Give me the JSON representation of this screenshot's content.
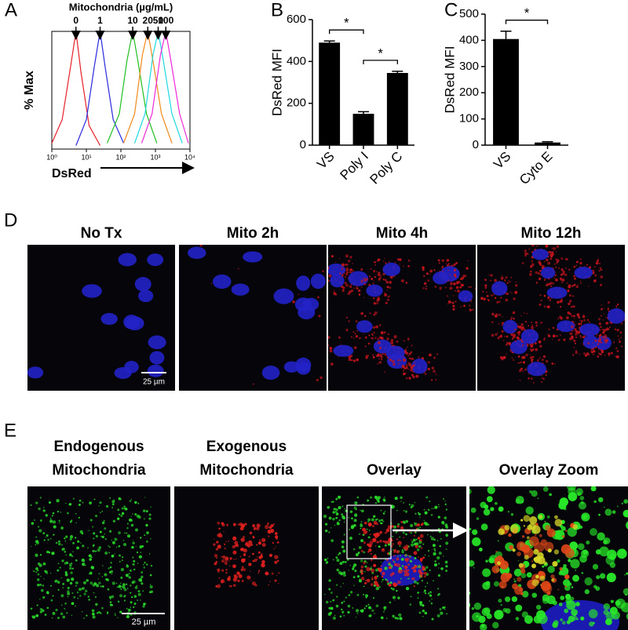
{
  "panels": {
    "labels": [
      "A",
      "B",
      "C",
      "D",
      "E"
    ]
  },
  "chart_data": [
    {
      "type": "line",
      "title": "Mitochondria (µg/mL)",
      "y_label": "% Max",
      "x_label": "DsRed",
      "log_x": true,
      "xlim": [
        1,
        10000
      ],
      "ylim": [
        0,
        100
      ],
      "xticks": [
        {
          "value": 1,
          "label": "10⁰"
        },
        {
          "value": 10,
          "label": "10¹"
        },
        {
          "value": 100,
          "label": "10²"
        },
        {
          "value": 1000,
          "label": "10³"
        },
        {
          "value": 10000,
          "label": "10⁴"
        }
      ],
      "series": [
        {
          "name": "0",
          "color": "#e8202a",
          "x": [
            1,
            2,
            3.5,
            5,
            7,
            12,
            25
          ],
          "values": [
            5,
            25,
            70,
            100,
            65,
            20,
            3
          ]
        },
        {
          "name": "1",
          "color": "#2a2ae0",
          "x": [
            5,
            10,
            17,
            25,
            35,
            60,
            120
          ],
          "values": [
            3,
            25,
            70,
            100,
            70,
            25,
            5
          ]
        },
        {
          "name": "10",
          "color": "#22c022",
          "x": [
            40,
            90,
            150,
            220,
            310,
            550,
            1100
          ],
          "values": [
            5,
            30,
            75,
            100,
            75,
            30,
            5
          ]
        },
        {
          "name": "20",
          "color": "#f08a1c",
          "x": [
            120,
            250,
            420,
            600,
            850,
            1500,
            3000
          ],
          "values": [
            5,
            30,
            80,
            100,
            75,
            30,
            5
          ]
        },
        {
          "name": "50",
          "color": "#20d8e0",
          "x": [
            250,
            500,
            850,
            1200,
            1700,
            3000,
            6000
          ],
          "values": [
            5,
            30,
            80,
            100,
            75,
            30,
            5
          ]
        },
        {
          "name": "100",
          "color": "#ee2ad8",
          "x": [
            400,
            800,
            1400,
            2000,
            2800,
            5000,
            9000
          ],
          "values": [
            5,
            30,
            80,
            100,
            75,
            30,
            5
          ]
        }
      ]
    },
    {
      "type": "bar",
      "y_label": "DsRed MFI",
      "categories": [
        "VS",
        "Poly I",
        "Poly C"
      ],
      "values": [
        490,
        150,
        345
      ],
      "errors": [
        8,
        10,
        8
      ],
      "color": "#000000",
      "ylim": [
        0,
        600
      ],
      "yticks": [
        0,
        200,
        400,
        600
      ],
      "annotations": [
        {
          "text": "*",
          "between": [
            0,
            1
          ]
        },
        {
          "text": "*",
          "between": [
            1,
            2
          ]
        }
      ]
    },
    {
      "type": "bar",
      "y_label": "DsRed MFI",
      "categories": [
        "VS",
        "Cyto E"
      ],
      "values": [
        405,
        10
      ],
      "errors": [
        30,
        3
      ],
      "color": "#000000",
      "ylim": [
        0,
        500
      ],
      "yticks": [
        0,
        100,
        200,
        300,
        400,
        500
      ],
      "annotations": [
        {
          "text": "*",
          "between": [
            0,
            1
          ]
        }
      ]
    }
  ],
  "microscopy": {
    "time_course": {
      "titles": [
        "No Tx",
        "Mito 2h",
        "Mito 4h",
        "Mito 12h"
      ],
      "scale_bar": "25 µm"
    },
    "localization": {
      "titles": [
        [
          "Endogenous",
          "Mitochondria"
        ],
        [
          "Exogenous",
          "Mitochondria"
        ],
        [
          "Overlay"
        ],
        [
          "Overlay Zoom"
        ]
      ],
      "scale_bar": "25 µm"
    }
  }
}
